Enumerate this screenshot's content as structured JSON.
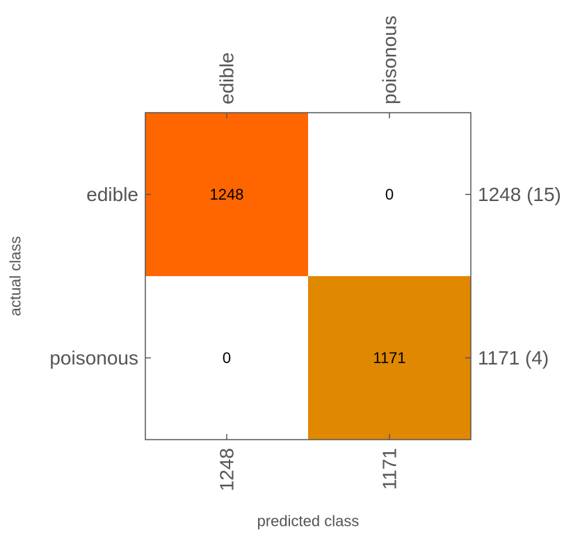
{
  "chart_data": {
    "type": "heatmap",
    "title": "",
    "xlabel": "predicted class",
    "ylabel": "actual class",
    "row_labels": [
      "edible",
      "poisonous"
    ],
    "col_labels": [
      "edible",
      "poisonous"
    ],
    "matrix": [
      [
        1248,
        0
      ],
      [
        0,
        1171
      ]
    ],
    "row_totals": [
      "1248 (15)",
      "1171 (4)"
    ],
    "col_totals": [
      "1248",
      "1171"
    ],
    "diagonal_colors": [
      "#ff6600",
      "#e08800"
    ],
    "off_diagonal_color": "#ffffff",
    "frame_color": "#555555"
  }
}
